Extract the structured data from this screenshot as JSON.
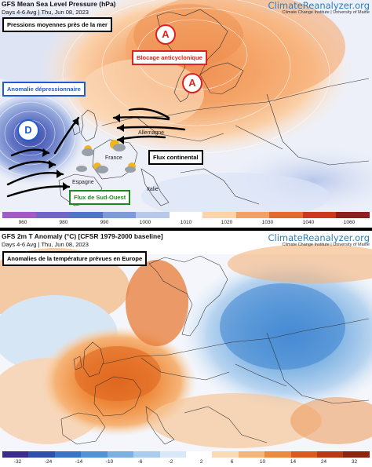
{
  "top": {
    "title": "GFS Mean Sea Level Pressure (hPa)",
    "subtitle": "Days 4-6 Avg | Thu, Jun 08, 2023",
    "brand": "ClimateReanalyzer.org",
    "brand_sub": "Climate Change Institute | University of Maine",
    "headline": "Pressions moyennes près de la mer",
    "annotations": {
      "high_1": "A",
      "high_2": "A",
      "low": "D",
      "blocking": "Blocage anticyclonique",
      "depression": "Anomalie dépressionnaire",
      "continental": "Flux continental",
      "southwest": "Flux de Sud-Ouest"
    },
    "countries": {
      "germany": "Allemagne",
      "france": "France",
      "spain": "Espagne",
      "italy": "Italie"
    },
    "scale": {
      "ticks": [
        "960",
        "980",
        "990",
        "1000",
        "1010",
        "1020",
        "1030",
        "1040",
        "1060"
      ],
      "colors": [
        "#a05cc4",
        "#6f66c8",
        "#4f74c8",
        "#7d9bd6",
        "#b8c8ea",
        "#ffffff",
        "#fbd3ad",
        "#f3a062",
        "#e56a2e",
        "#c8391e",
        "#8e1f1f"
      ]
    }
  },
  "bottom": {
    "title": "GFS 2m T Anomaly (°C) [CFSR 1979-2000 baseline]",
    "subtitle": "Days 4-6 Avg | Thu, Jun 08, 2023",
    "brand": "ClimateReanalyzer.org",
    "brand_sub": "Climate Change Institute | University of Maine",
    "headline": "Anomalies de la température prévues en Europe",
    "scale": {
      "ticks": [
        "-32",
        "-24",
        "-14",
        "-10",
        "-6",
        "-2",
        "2",
        "6",
        "10",
        "14",
        "24",
        "32"
      ],
      "colors": [
        "#3b2b8f",
        "#2c4fb0",
        "#3675c8",
        "#4f93d8",
        "#7bb1e2",
        "#a9cdee",
        "#d8e8f7",
        "#ffffff",
        "#fbdab6",
        "#f6b478",
        "#ee8a3c",
        "#d85d1a",
        "#b83a10",
        "#8f230c"
      ]
    }
  }
}
